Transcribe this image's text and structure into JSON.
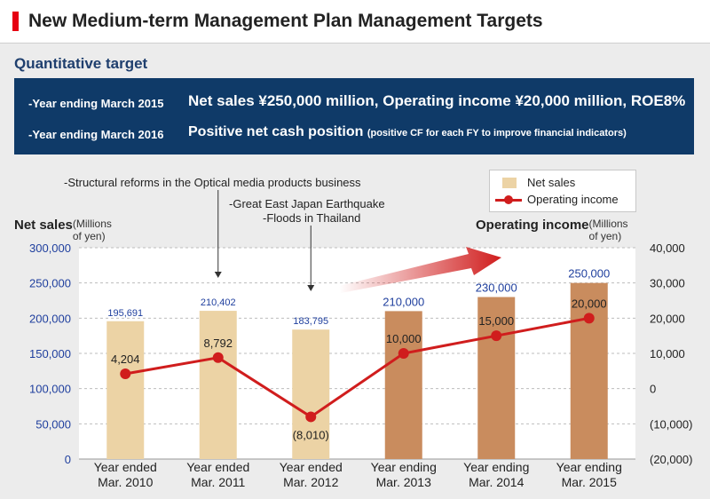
{
  "header": {
    "title": "New Medium-term Management Plan Management Targets"
  },
  "subtitle": "Quantitative target",
  "targets": [
    {
      "label": "-Year ending March 2015",
      "text": "Net sales ¥250,000 million, Operating income ¥20,000 million, ROE8%"
    },
    {
      "label": "-Year ending March 2016",
      "text": "Positive net cash position",
      "note": "(positive CF for each FY to improve financial indicators)"
    }
  ],
  "annotations": {
    "optical": "-Structural reforms in the Optical media products business",
    "earthquake": "-Great East Japan Earthquake",
    "floods": "-Floods in Thailand"
  },
  "colors": {
    "actual_bar": "#ecd3a5",
    "plan_bar": "#c98c5e",
    "line": "#d01d1d",
    "value_label": "#1f3f9e",
    "plot_bg": "#ffffff",
    "navy": "#0f3a68"
  },
  "chart_data": {
    "type": "bar",
    "categories": [
      [
        "Year ended",
        "Mar. 2010"
      ],
      [
        "Year ended",
        "Mar. 2011"
      ],
      [
        "Year ended",
        "Mar. 2012"
      ],
      [
        "Year ending",
        "Mar. 2013"
      ],
      [
        "Year ending",
        "Mar. 2014"
      ],
      [
        "Year ending",
        "Mar. 2015"
      ]
    ],
    "series": [
      {
        "name": "Net sales",
        "type": "bar",
        "axis": "left",
        "values": [
          195691,
          210402,
          183795,
          210000,
          230000,
          250000
        ],
        "labels": [
          "195,691",
          "210,402",
          "183,795",
          "210,000",
          "230,000",
          "250,000"
        ],
        "kind": [
          "actual",
          "actual",
          "actual",
          "plan",
          "plan",
          "plan"
        ]
      },
      {
        "name": "Operating income",
        "type": "line",
        "axis": "right",
        "values": [
          4204,
          8792,
          -8010,
          10000,
          15000,
          20000
        ],
        "labels": [
          "4,204",
          "8,792",
          "(8,010)",
          "10,000",
          "15,000",
          "20,000"
        ]
      }
    ],
    "ylabel": "Net sales",
    "ylabel_unit": "(Millions of yen)",
    "ylim": [
      0,
      300000
    ],
    "yticks": [
      "0",
      "50,000",
      "100,000",
      "150,000",
      "200,000",
      "250,000",
      "300,000"
    ],
    "y2label": "Operating income",
    "y2label_unit": "(Millions of yen)",
    "y2lim": [
      -20000,
      40000
    ],
    "y2ticks": [
      "(20,000)",
      "(10,000)",
      "0",
      "10,000",
      "20,000",
      "30,000",
      "40,000"
    ],
    "grid": true,
    "legend": "top-right"
  }
}
